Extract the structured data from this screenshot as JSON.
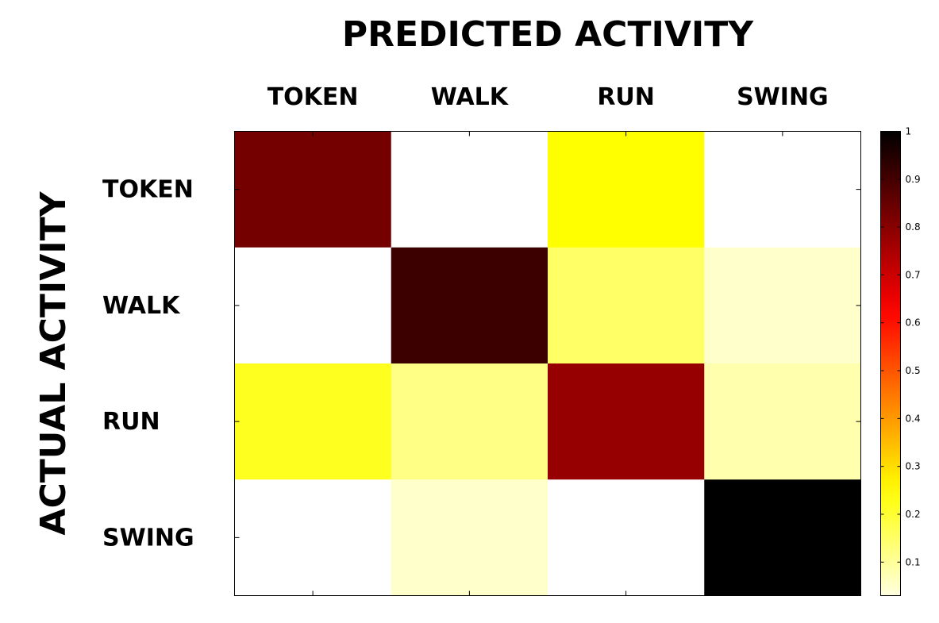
{
  "chart_data": {
    "type": "heatmap",
    "title": "PREDICTED ACTIVITY",
    "ylabel": "ACTUAL ACTIVITY",
    "x_categories": [
      "TOKEN",
      "WALK",
      "RUN",
      "SWING"
    ],
    "y_categories": [
      "TOKEN",
      "WALK",
      "RUN",
      "SWING"
    ],
    "values": [
      [
        0.83,
        0.0,
        0.25,
        0.0
      ],
      [
        0.0,
        0.91,
        0.15,
        0.05
      ],
      [
        0.22,
        0.12,
        0.78,
        0.08
      ],
      [
        0.0,
        0.05,
        0.0,
        1.0
      ]
    ],
    "colorbar": {
      "colormap": "hot-reversed",
      "range": [
        0.03,
        1
      ],
      "tick_values": [
        0.1,
        0.2,
        0.3,
        0.4,
        0.5,
        0.6,
        0.7,
        0.8,
        0.9,
        1
      ],
      "tick_labels": [
        "0.1",
        "0.2",
        "0.3",
        "0.4",
        "0.5",
        "0.6",
        "0.7",
        "0.8",
        "0.9",
        "1"
      ]
    },
    "grid": false
  }
}
